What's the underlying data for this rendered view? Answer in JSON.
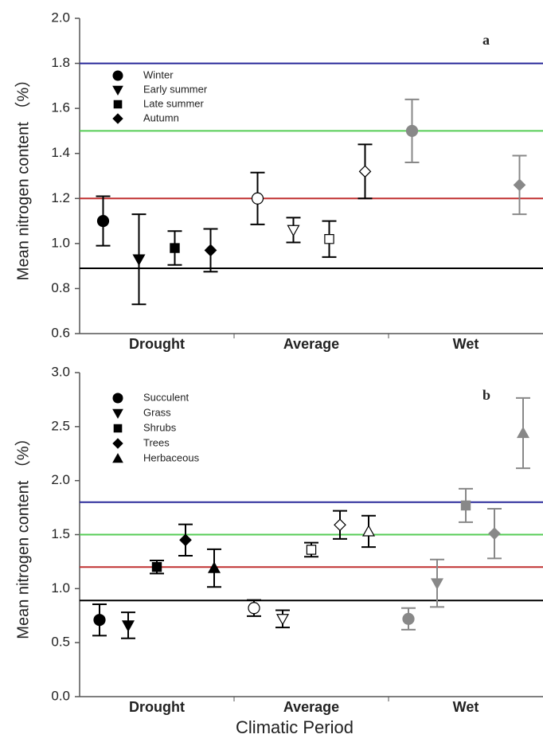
{
  "chart_data": [
    {
      "type": "errorbar",
      "panel_label": "a",
      "ylabel": "Mean nitrogen content （%）",
      "categories": [
        "Drought",
        "Average",
        "Wet"
      ],
      "category_colors": [
        "#000000",
        "#ffffff",
        "#888888"
      ],
      "category_strokes": [
        "#000000",
        "#000000",
        "#888888"
      ],
      "series": [
        {
          "name": "Winter",
          "marker": "circle",
          "values": [
            1.1,
            1.2,
            1.5
          ],
          "errors": [
            0.11,
            0.115,
            0.14
          ]
        },
        {
          "name": "Early summer",
          "marker": "triangle-down",
          "values": [
            0.93,
            1.06,
            null
          ],
          "errors": [
            0.2,
            0.055,
            null
          ]
        },
        {
          "name": "Late summer",
          "marker": "square",
          "values": [
            0.98,
            1.02,
            null
          ],
          "errors": [
            0.075,
            0.08,
            null
          ]
        },
        {
          "name": "Autumn",
          "marker": "diamond",
          "values": [
            0.97,
            1.32,
            1.26
          ],
          "errors": [
            0.095,
            0.12,
            0.13
          ]
        }
      ],
      "reference_lines": [
        {
          "value": 1.8,
          "color": "#2a2a9a"
        },
        {
          "value": 1.5,
          "color": "#55cc55"
        },
        {
          "value": 1.2,
          "color": "#c03030"
        },
        {
          "value": 0.89,
          "color": "#000000"
        }
      ],
      "ylim": [
        0.6,
        2.0
      ],
      "yticks": [
        0.6,
        0.8,
        {
          "value": 1,
          "label": "1.0"
        },
        1.2,
        1.4,
        1.6,
        1.8,
        {
          "value": 2,
          "label": "2.0"
        }
      ]
    },
    {
      "type": "errorbar",
      "panel_label": "b",
      "ylabel": "Mean nitrogen content （%）",
      "xlabel": "Climatic Period",
      "categories": [
        "Drought",
        "Average",
        "Wet"
      ],
      "category_colors": [
        "#000000",
        "#ffffff",
        "#888888"
      ],
      "category_strokes": [
        "#000000",
        "#000000",
        "#888888"
      ],
      "series": [
        {
          "name": "Succulent",
          "marker": "circle",
          "values": [
            0.71,
            0.82,
            0.72
          ],
          "errors": [
            0.145,
            0.075,
            0.1
          ]
        },
        {
          "name": "Grass",
          "marker": "triangle-down",
          "values": [
            0.66,
            0.72,
            1.05
          ],
          "errors": [
            0.12,
            0.08,
            0.22
          ]
        },
        {
          "name": "Shrubs",
          "marker": "square",
          "values": [
            1.2,
            1.36,
            1.77
          ],
          "errors": [
            0.06,
            0.065,
            0.155
          ]
        },
        {
          "name": "Trees",
          "marker": "diamond",
          "values": [
            1.45,
            1.59,
            1.51
          ],
          "errors": [
            0.145,
            0.13,
            0.23
          ]
        },
        {
          "name": "Herbaceous",
          "marker": "triangle-up",
          "values": [
            1.19,
            1.53,
            2.44
          ],
          "errors": [
            0.175,
            0.145,
            0.325
          ]
        }
      ],
      "reference_lines": [
        {
          "value": 1.8,
          "color": "#2a2a9a"
        },
        {
          "value": 1.5,
          "color": "#55cc55"
        },
        {
          "value": 1.2,
          "color": "#c03030"
        },
        {
          "value": 0.89,
          "color": "#000000"
        }
      ],
      "ylim": [
        0,
        3
      ],
      "yticks": [
        {
          "value": 0,
          "label": "0.0"
        },
        0.5,
        {
          "value": 1,
          "label": "1.0"
        },
        1.5,
        {
          "value": 2,
          "label": "2.0"
        },
        2.5,
        {
          "value": 3,
          "label": "3.0"
        }
      ]
    }
  ]
}
